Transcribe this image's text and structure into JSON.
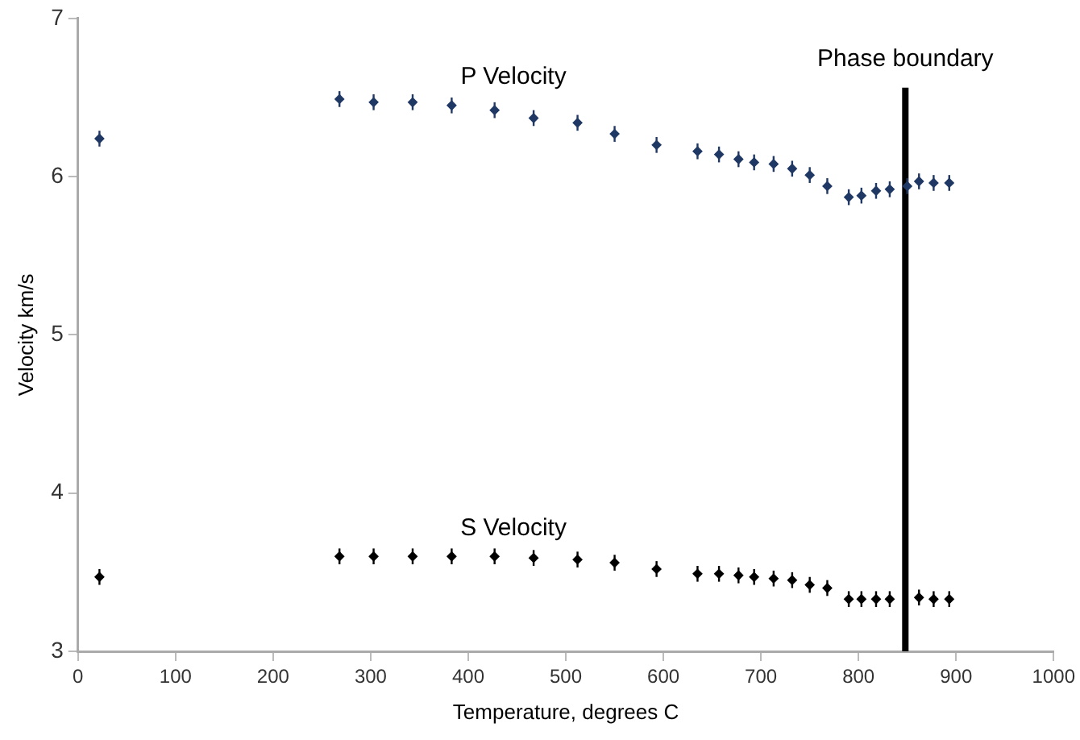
{
  "chart_data": {
    "type": "scatter",
    "xlabel": "Temperature, degrees C",
    "ylabel": "Velocity km/s",
    "xlim": [
      0,
      1000
    ],
    "xticks": [
      0,
      100,
      200,
      300,
      400,
      500,
      600,
      700,
      800,
      900,
      1000
    ],
    "ylim": [
      3,
      7
    ],
    "yticks": [
      3,
      4,
      5,
      6,
      7
    ],
    "grid": false,
    "legend": false,
    "marker": "diamond",
    "series": [
      {
        "name": "P Velocity",
        "color": "#1f3864",
        "x": [
          22,
          268,
          303,
          343,
          383,
          427,
          467,
          512,
          550,
          593,
          635,
          657,
          677,
          693,
          713,
          732,
          750,
          768,
          790,
          803,
          818,
          832,
          850,
          862,
          877,
          893
        ],
        "values": [
          6.24,
          6.49,
          6.47,
          6.47,
          6.45,
          6.42,
          6.37,
          6.34,
          6.27,
          6.2,
          6.16,
          6.14,
          6.11,
          6.09,
          6.08,
          6.05,
          6.01,
          5.94,
          5.87,
          5.88,
          5.91,
          5.92,
          5.94,
          5.97,
          5.96,
          5.96
        ],
        "errors": [
          0.05,
          0.05,
          0.05,
          0.05,
          0.05,
          0.05,
          0.05,
          0.05,
          0.05,
          0.05,
          0.05,
          0.05,
          0.05,
          0.05,
          0.05,
          0.05,
          0.05,
          0.05,
          0.05,
          0.05,
          0.05,
          0.05,
          0.05,
          0.05,
          0.05,
          0.05
        ]
      },
      {
        "name": "S Velocity",
        "color": "#000000",
        "x": [
          22,
          268,
          303,
          343,
          383,
          427,
          467,
          512,
          550,
          593,
          635,
          657,
          677,
          693,
          713,
          732,
          750,
          768,
          790,
          803,
          818,
          832,
          862,
          877,
          893
        ],
        "values": [
          3.47,
          3.6,
          3.6,
          3.6,
          3.6,
          3.6,
          3.59,
          3.58,
          3.56,
          3.52,
          3.49,
          3.49,
          3.48,
          3.47,
          3.46,
          3.45,
          3.42,
          3.4,
          3.33,
          3.33,
          3.33,
          3.33,
          3.34,
          3.33,
          3.33
        ],
        "errors": [
          0.05,
          0.05,
          0.05,
          0.05,
          0.05,
          0.05,
          0.05,
          0.05,
          0.05,
          0.05,
          0.05,
          0.05,
          0.05,
          0.05,
          0.05,
          0.05,
          0.05,
          0.05,
          0.05,
          0.05,
          0.05,
          0.05,
          0.05,
          0.05,
          0.05
        ]
      }
    ],
    "ref_lines": [
      {
        "axis": "x",
        "value": 848,
        "label": "Phase boundary",
        "color": "#000000",
        "line_style": "solid"
      }
    ]
  }
}
